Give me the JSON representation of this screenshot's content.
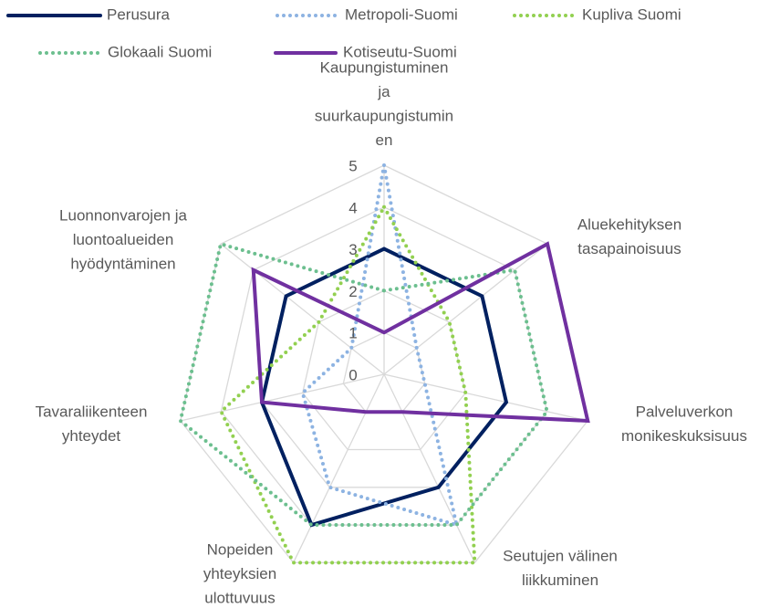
{
  "chart_data": {
    "type": "radar",
    "categories": [
      [
        "Kaupungistuminen",
        "ja",
        "suurkaupungistumin",
        "en"
      ],
      [
        "Aluekehityksen",
        "tasapainoisuus"
      ],
      [
        "Palveluverkon",
        "monikeskuksisuus"
      ],
      [
        "Seutujen välinen",
        "liikkuminen"
      ],
      [
        "Nopeiden",
        "yhteyksien",
        "ulottuvuus"
      ],
      [
        "Tavaraliikenteen",
        "yhteydet"
      ],
      [
        "Luonnonvarojen ja",
        "luontoalueiden",
        "hyödyntäminen"
      ]
    ],
    "series": [
      {
        "name": "Perusura",
        "color": "#002060",
        "dash": "solid",
        "values": [
          3,
          3,
          3,
          3,
          4,
          3,
          3
        ]
      },
      {
        "name": "Metropoli-Suomi",
        "color": "#8db3e2",
        "dash": "dotted",
        "values": [
          5,
          1,
          1,
          4,
          3,
          2,
          1
        ]
      },
      {
        "name": "Kupliva Suomi",
        "color": "#92d050",
        "dash": "dotted",
        "values": [
          4,
          2,
          2,
          5,
          5,
          4,
          2
        ]
      },
      {
        "name": "Glokaali Suomi",
        "color": "#6cbf8f",
        "dash": "dotted",
        "values": [
          2,
          4,
          4,
          4,
          4,
          5,
          5
        ]
      },
      {
        "name": "Kotiseutu-Suomi",
        "color": "#7030a0",
        "dash": "solid",
        "values": [
          1,
          5,
          5,
          1,
          1,
          3,
          4
        ]
      }
    ],
    "ylim": [
      0,
      5
    ],
    "yticks": [
      0,
      1,
      2,
      3,
      4,
      5
    ],
    "grid": true,
    "legend": "top"
  }
}
